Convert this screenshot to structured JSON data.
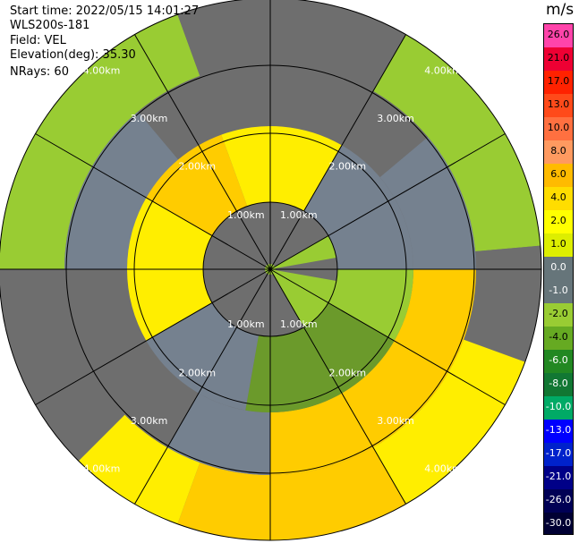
{
  "info": {
    "start_time": "Start time: 2022/05/15 14:01:27",
    "instrument": "WLS200s-181",
    "field": "Field: VEL",
    "elevation": "Elevation(deg): 35.30",
    "nrays": "NRays: 60"
  },
  "colorbar": {
    "unit": "m/s",
    "ticks": [
      "26.0",
      "21.0",
      "17.0",
      "13.0",
      "10.0",
      "8.0",
      "6.0",
      "4.0",
      "2.0",
      "1.0",
      "0.0",
      "-1.0",
      "-2.0",
      "-4.0",
      "-6.0",
      "-8.0",
      "-10.0",
      "-13.0",
      "-17.0",
      "-21.0",
      "-26.0",
      "-30.0"
    ],
    "colors": [
      "#ff44aa",
      "#ee0033",
      "#ff2200",
      "#ff4a1a",
      "#ff7040",
      "#ff9a60",
      "#ffbb00",
      "#ffdd00",
      "#ffff00",
      "#ddee00",
      "#66757a",
      "#66757a",
      "#99cc33",
      "#66aa22",
      "#228822",
      "#117733",
      "#00aa66",
      "#0000ff",
      "#0022cc",
      "#000088",
      "#000055",
      "#000033"
    ]
  },
  "range_labels": [
    "1.00km",
    "2.00km",
    "3.00km",
    "4.00km"
  ],
  "palette": {
    "background_gray": "#6e6e6e",
    "slate": "#75818f",
    "light_green": "#99cc33",
    "dark_green": "#6b9a2b",
    "yellow": "#ffee00",
    "gold": "#ffcc00"
  }
}
